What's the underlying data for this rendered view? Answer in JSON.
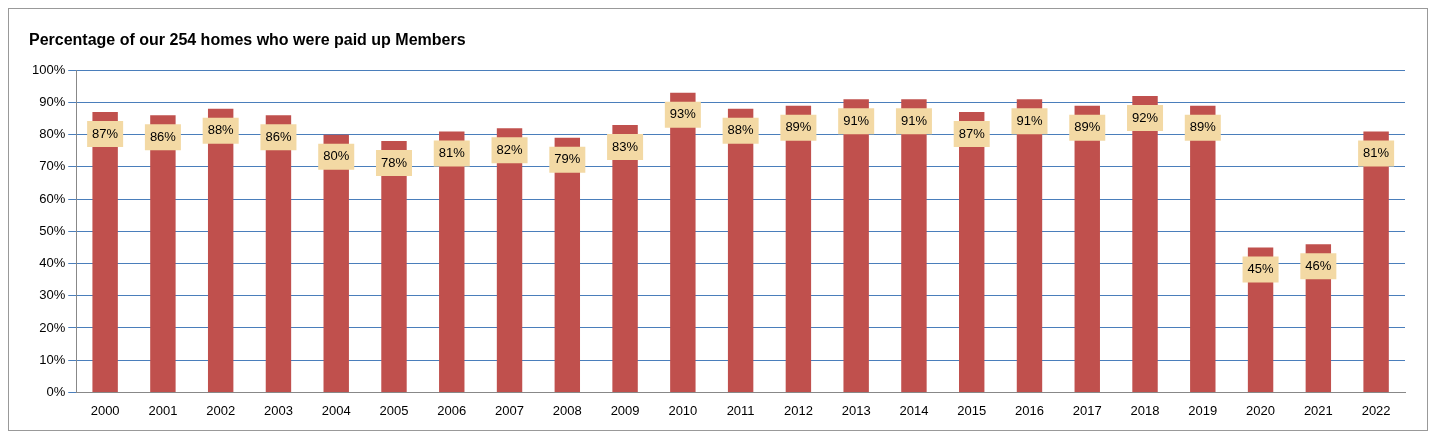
{
  "chart_data": {
    "type": "bar",
    "title": "Percentage of our 254 homes who were paid up Members",
    "categories": [
      "2000",
      "2001",
      "2002",
      "2003",
      "2004",
      "2005",
      "2006",
      "2007",
      "2008",
      "2009",
      "2010",
      "2011",
      "2012",
      "2013",
      "2014",
      "2015",
      "2016",
      "2017",
      "2018",
      "2019",
      "2020",
      "2021",
      "2022"
    ],
    "values": [
      87,
      86,
      88,
      86,
      80,
      78,
      81,
      82,
      79,
      83,
      93,
      88,
      89,
      91,
      91,
      87,
      91,
      89,
      92,
      89,
      45,
      46,
      81
    ],
    "value_labels": [
      "87%",
      "86%",
      "88%",
      "86%",
      "80%",
      "78%",
      "81%",
      "82%",
      "79%",
      "83%",
      "93%",
      "88%",
      "89%",
      "91%",
      "91%",
      "87%",
      "91%",
      "89%",
      "92%",
      "89%",
      "45%",
      "46%",
      "81%"
    ],
    "color": "#c0504d",
    "ylim": [
      0,
      100
    ],
    "yticks": [
      {
        "value": 0,
        "label": "0%"
      },
      {
        "value": 10,
        "label": "10%"
      },
      {
        "value": 20,
        "label": "20%"
      },
      {
        "value": 30,
        "label": "30%"
      },
      {
        "value": 40,
        "label": "40%"
      },
      {
        "value": 50,
        "label": "50%"
      },
      {
        "value": 60,
        "label": "60%"
      },
      {
        "value": 70,
        "label": "70%"
      },
      {
        "value": 80,
        "label": "80%"
      },
      {
        "value": 90,
        "label": "90%"
      },
      {
        "value": 100,
        "label": "100%"
      }
    ],
    "grid": "y"
  }
}
